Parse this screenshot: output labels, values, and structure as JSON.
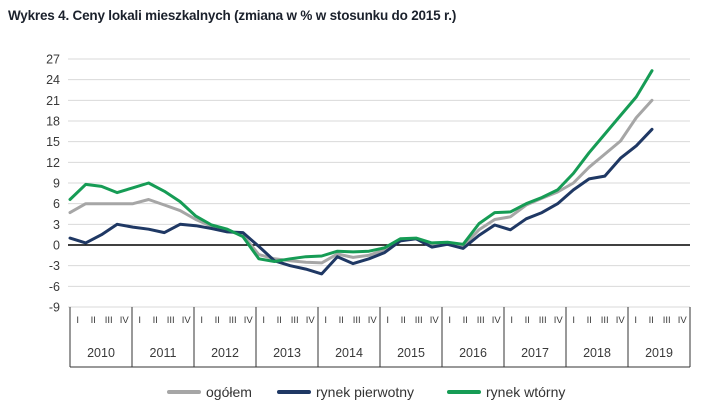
{
  "title": "Wykres 4. Ceny lokali mieszkalnych (zmiana w % w stosunku do 2015 r.)",
  "colors": {
    "ogolem": "#a6a6a6",
    "pierwotny": "#1f3864",
    "wtorny": "#169c55",
    "grid": "#d9d9d9",
    "zero_line": "#000000",
    "axis_line": "#333333",
    "axis_text": "#3a3a3a",
    "title_text": "#1b212c",
    "background": "#ffffff"
  },
  "legend": {
    "items": [
      {
        "key": "ogolem",
        "label": "ogółem"
      },
      {
        "key": "pierwotny",
        "label": "rynek pierwotny"
      },
      {
        "key": "wtorny",
        "label": "rynek wtórny"
      }
    ]
  },
  "chart_data": {
    "type": "line",
    "title": "Wykres 4. Ceny lokali mieszkalnych (zmiana w % w stosunku do 2015 r.)",
    "ylabel": "",
    "xlabel": "",
    "ylim": [
      -9,
      27
    ],
    "y_ticks": [
      27,
      24,
      21,
      18,
      15,
      12,
      9,
      6,
      3,
      0,
      -3,
      -6,
      -9
    ],
    "grid": "horizontal",
    "legend_position": "bottom",
    "x_years": [
      "2010",
      "2011",
      "2012",
      "2013",
      "2014",
      "2015",
      "2016",
      "2017",
      "2018",
      "2019"
    ],
    "quarter_labels": [
      "I",
      "II",
      "III",
      "IV"
    ],
    "categories": [
      "2010 I",
      "2010 II",
      "2010 III",
      "2010 IV",
      "2011 I",
      "2011 II",
      "2011 III",
      "2011 IV",
      "2012 I",
      "2012 II",
      "2012 III",
      "2012 IV",
      "2013 I",
      "2013 II",
      "2013 III",
      "2013 IV",
      "2014 I",
      "2014 II",
      "2014 III",
      "2014 IV",
      "2015 I",
      "2015 II",
      "2015 III",
      "2015 IV",
      "2016 I",
      "2016 II",
      "2016 III",
      "2016 IV",
      "2017 I",
      "2017 II",
      "2017 III",
      "2017 IV",
      "2018 I",
      "2018 II",
      "2018 III",
      "2018 IV",
      "2019 I",
      "2019 II"
    ],
    "series": [
      {
        "name": "ogółem",
        "key": "ogolem",
        "values": [
          4.7,
          6.0,
          6.0,
          6.0,
          6.0,
          6.6,
          5.8,
          5.0,
          3.7,
          2.7,
          2.1,
          1.4,
          -1.4,
          -2.0,
          -2.3,
          -2.5,
          -2.6,
          -1.3,
          -1.8,
          -1.5,
          -0.7,
          0.7,
          0.9,
          0.1,
          0.3,
          -0.2,
          2.2,
          3.7,
          4.1,
          5.8,
          6.8,
          7.7,
          9.0,
          11.3,
          13.2,
          15.1,
          18.5,
          21.0
        ]
      },
      {
        "name": "rynek pierwotny",
        "key": "pierwotny",
        "values": [
          1.0,
          0.3,
          1.5,
          3.0,
          2.6,
          2.3,
          1.8,
          3.0,
          2.8,
          2.4,
          1.9,
          1.8,
          -0.2,
          -2.3,
          -3.0,
          -3.5,
          -4.2,
          -1.7,
          -2.7,
          -2.0,
          -1.1,
          0.6,
          0.9,
          -0.3,
          0.1,
          -0.5,
          1.4,
          2.9,
          2.2,
          3.8,
          4.7,
          6.0,
          8.0,
          9.6,
          10.0,
          12.6,
          14.4,
          16.8
        ]
      },
      {
        "name": "rynek wtórny",
        "key": "wtorny",
        "values": [
          6.6,
          8.8,
          8.5,
          7.6,
          8.3,
          9.0,
          7.8,
          6.3,
          4.2,
          2.9,
          2.3,
          1.2,
          -2.0,
          -2.4,
          -2.0,
          -1.7,
          -1.6,
          -0.9,
          -1.0,
          -0.9,
          -0.4,
          0.9,
          1.0,
          0.3,
          0.4,
          0.1,
          3.1,
          4.7,
          4.8,
          6.0,
          6.9,
          8.0,
          10.4,
          13.4,
          16.1,
          18.8,
          21.5,
          25.3
        ]
      }
    ]
  }
}
